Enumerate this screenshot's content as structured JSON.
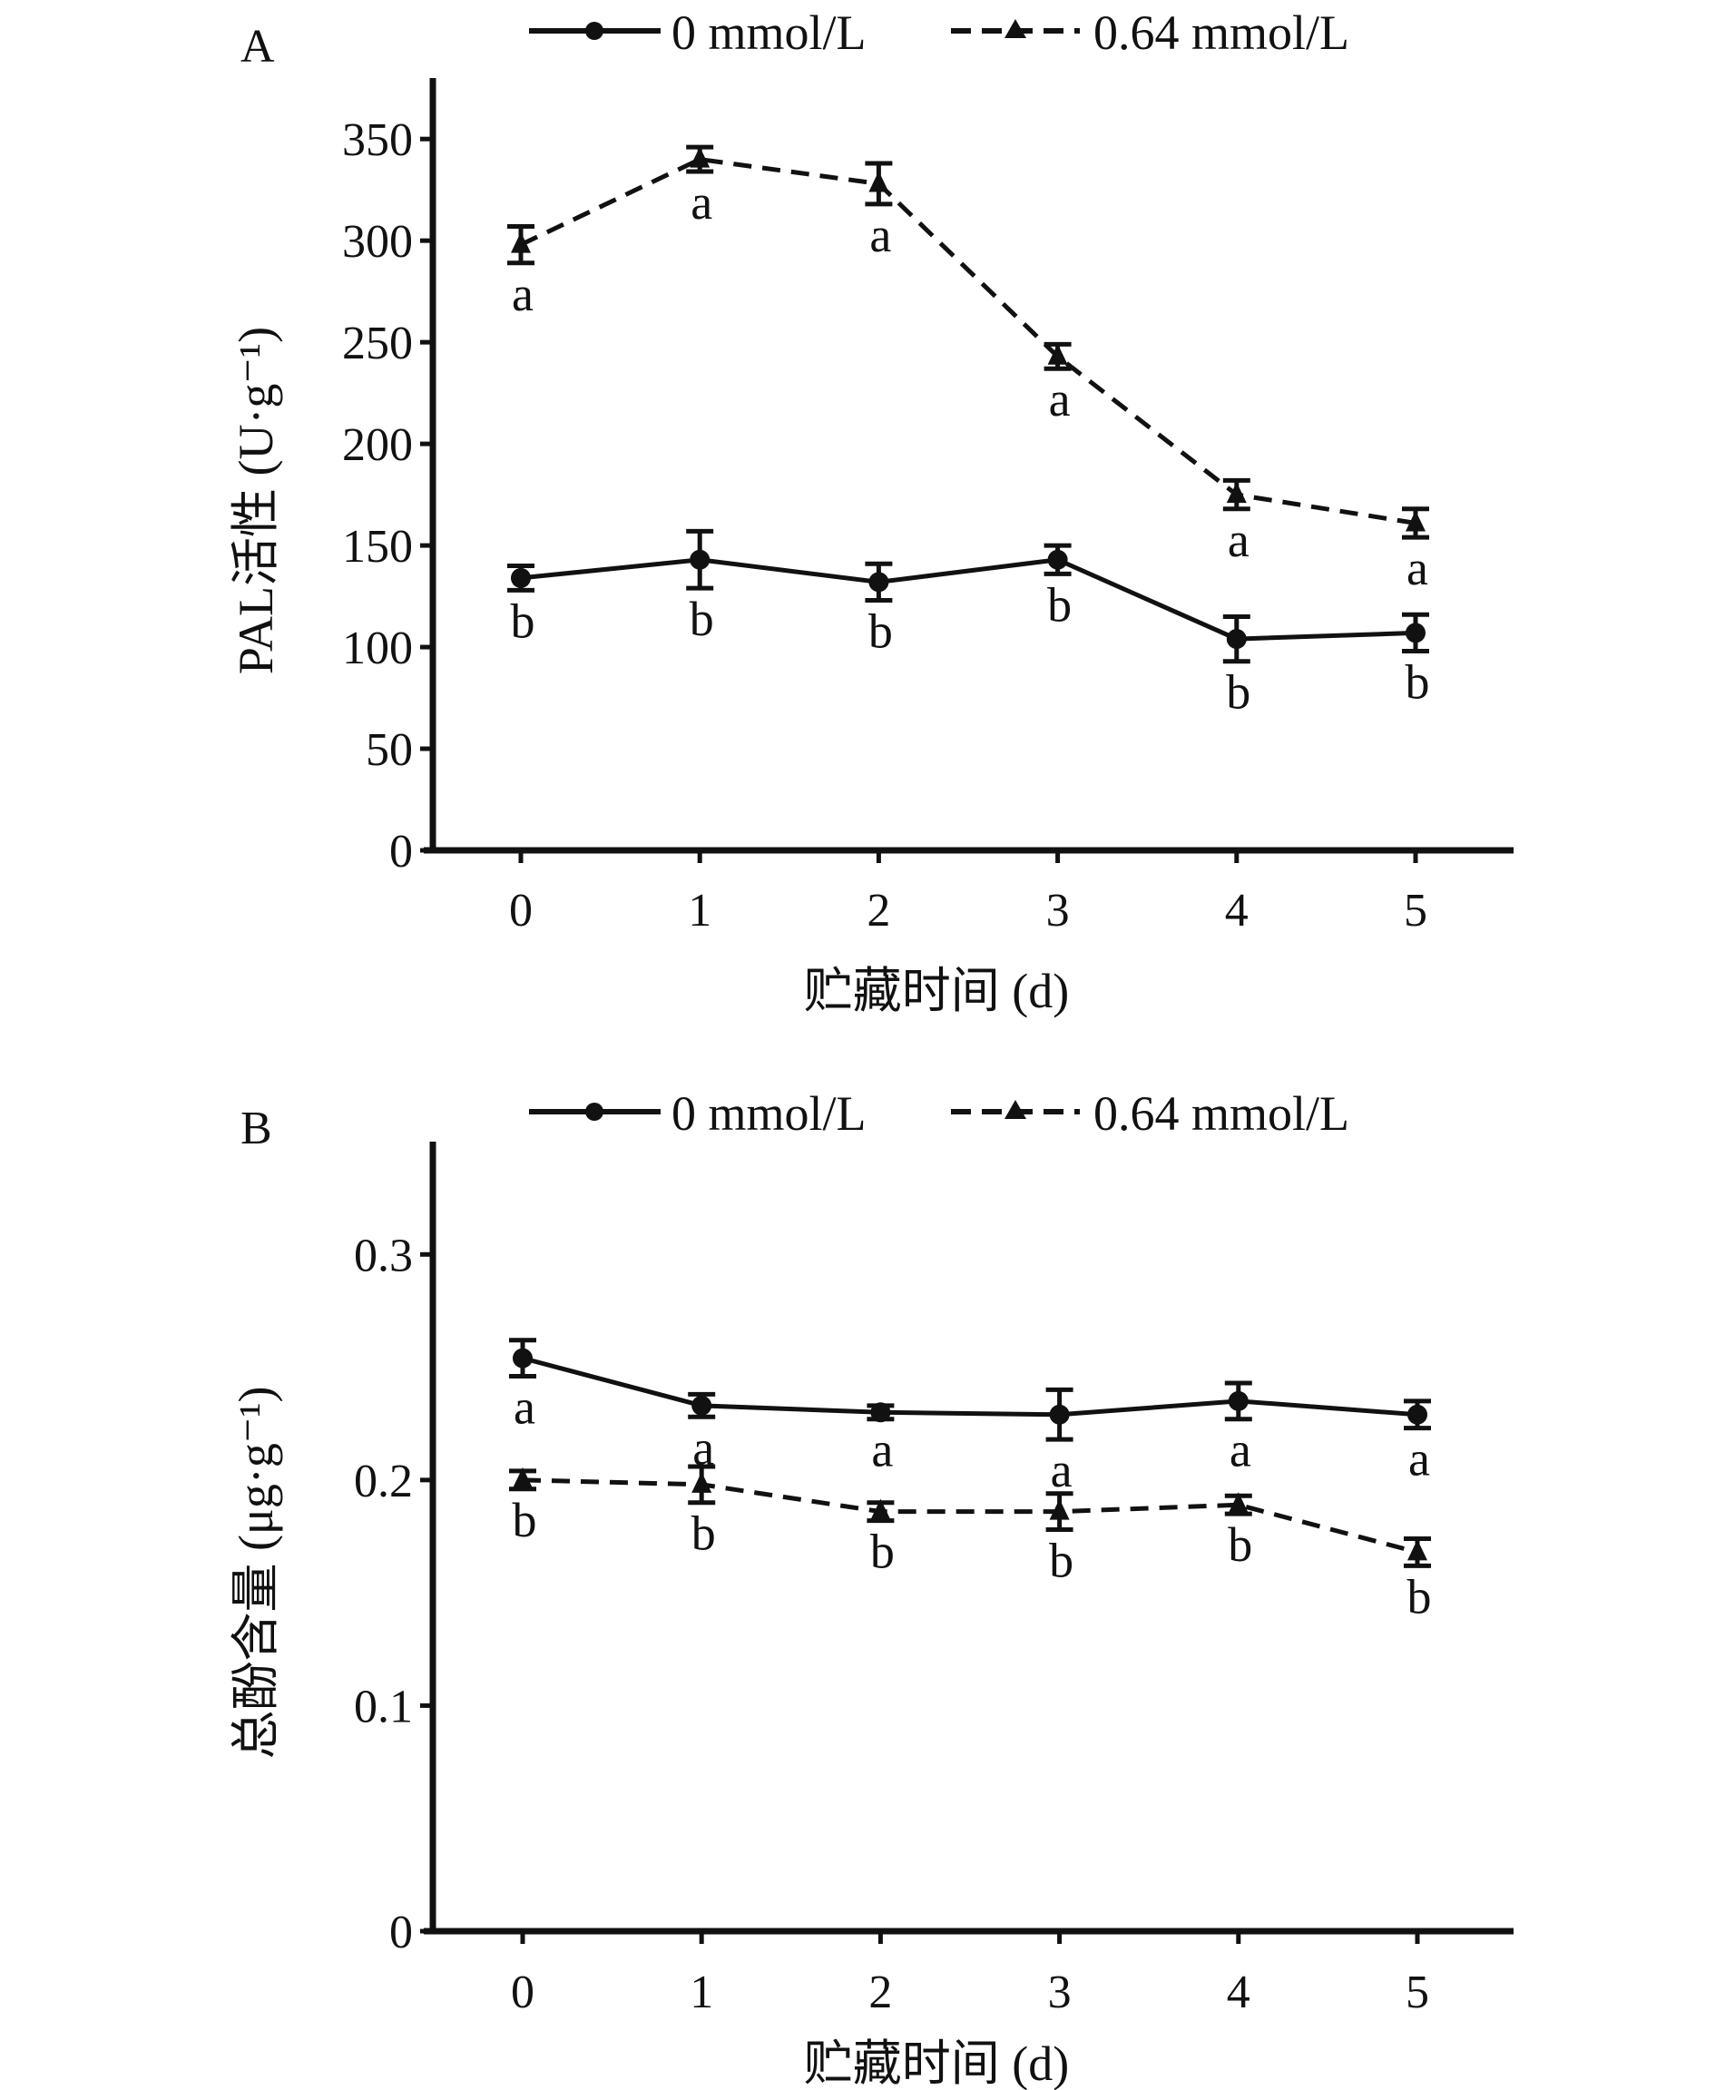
{
  "chart_data": [
    {
      "type": "line",
      "panel_label": "A",
      "title": "",
      "xlabel": "贮藏时间 (d)",
      "ylabel": "PAL活性 (U·g⁻¹)",
      "x": [
        0,
        1,
        2,
        3,
        4,
        5
      ],
      "x_tick_labels": [
        "0",
        "1",
        "2",
        "3",
        "4",
        "5"
      ],
      "ylim": [
        0,
        380
      ],
      "y_ticks": [
        0,
        50,
        100,
        150,
        200,
        250,
        300,
        350
      ],
      "y_tick_labels": [
        "0",
        "50",
        "100",
        "150",
        "200",
        "250",
        "300",
        "350"
      ],
      "grid": false,
      "legend_position": "top",
      "series": [
        {
          "name": "0 mmol/L",
          "line_style": "solid",
          "marker": "circle",
          "values": [
            134,
            143,
            132,
            143,
            104,
            107
          ],
          "errors": [
            6,
            14,
            9,
            7,
            11,
            9
          ],
          "significance_letters": [
            "b",
            "b",
            "b",
            "b",
            "b",
            "b"
          ]
        },
        {
          "name": "0.64 mmol/L",
          "line_style": "dashed",
          "marker": "triangle",
          "values": [
            298,
            340,
            328,
            243,
            175,
            161
          ],
          "errors": [
            9,
            6,
            10,
            6,
            7,
            7
          ],
          "significance_letters": [
            "a",
            "a",
            "a",
            "a",
            "a",
            "a"
          ]
        }
      ]
    },
    {
      "type": "line",
      "panel_label": "B",
      "title": "",
      "xlabel": "贮藏时间 (d)",
      "ylabel": "总酚含量 (μg·g⁻¹)",
      "x": [
        0,
        1,
        2,
        3,
        4,
        5
      ],
      "x_tick_labels": [
        "0",
        "1",
        "2",
        "3",
        "4",
        "5"
      ],
      "ylim": [
        0,
        0.35
      ],
      "y_ticks": [
        0,
        0.1,
        0.2,
        0.3
      ],
      "y_tick_labels": [
        "0",
        "0.1",
        "0.2",
        "0.3"
      ],
      "grid": false,
      "legend_position": "top",
      "series": [
        {
          "name": "0 mmol/L",
          "line_style": "solid",
          "marker": "circle",
          "values": [
            0.254,
            0.233,
            0.23,
            0.229,
            0.235,
            0.229
          ],
          "errors": [
            0.008,
            0.005,
            0.003,
            0.011,
            0.008,
            0.006
          ],
          "significance_letters": [
            "a",
            "a",
            "a",
            "a",
            "a",
            "a"
          ]
        },
        {
          "name": "0.64 mmol/L",
          "line_style": "dashed",
          "marker": "triangle",
          "values": [
            0.2,
            0.198,
            0.186,
            0.186,
            0.189,
            0.168
          ],
          "errors": [
            0.004,
            0.008,
            0.004,
            0.008,
            0.004,
            0.006
          ],
          "significance_letters": [
            "b",
            "b",
            "b",
            "b",
            "b",
            "b"
          ]
        }
      ]
    }
  ],
  "colors": {
    "ink": "#111111",
    "background": "#ffffff"
  }
}
